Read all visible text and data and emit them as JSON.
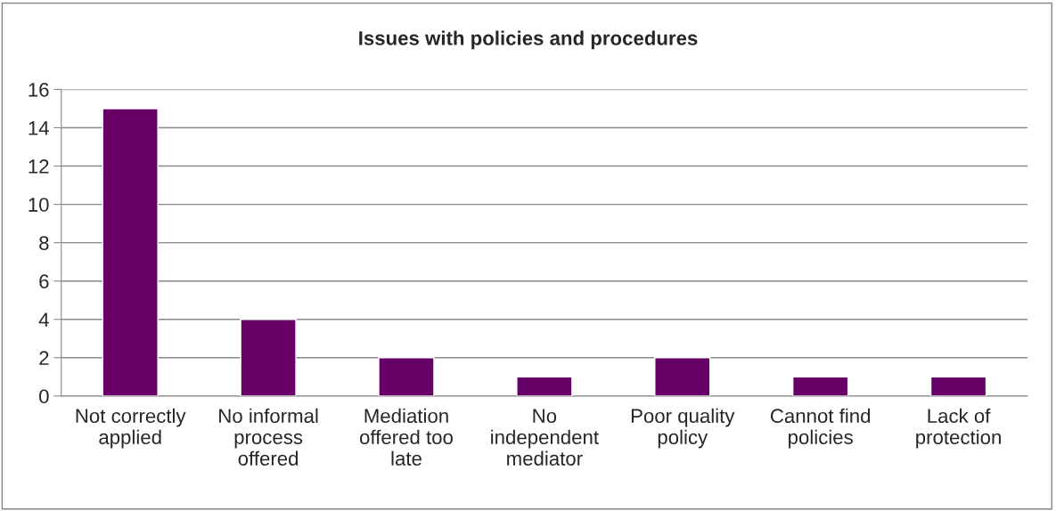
{
  "chart_data": {
    "type": "bar",
    "title": "Issues with policies and procedures",
    "categories": [
      "Not correctly\napplied",
      "No informal\nprocess\noffered",
      "Mediation\noffered too\nlate",
      "No\nindependent\nmediator",
      "Poor quality\npolicy",
      "Cannot find\npolicies",
      "Lack of\nprotection"
    ],
    "values": [
      15,
      4,
      2,
      1,
      2,
      1,
      1
    ],
    "color": "#660066",
    "ylim": [
      0,
      16
    ],
    "yticks": [
      0,
      2,
      4,
      6,
      8,
      10,
      12,
      14,
      16
    ],
    "grid": "y",
    "legend": false
  }
}
